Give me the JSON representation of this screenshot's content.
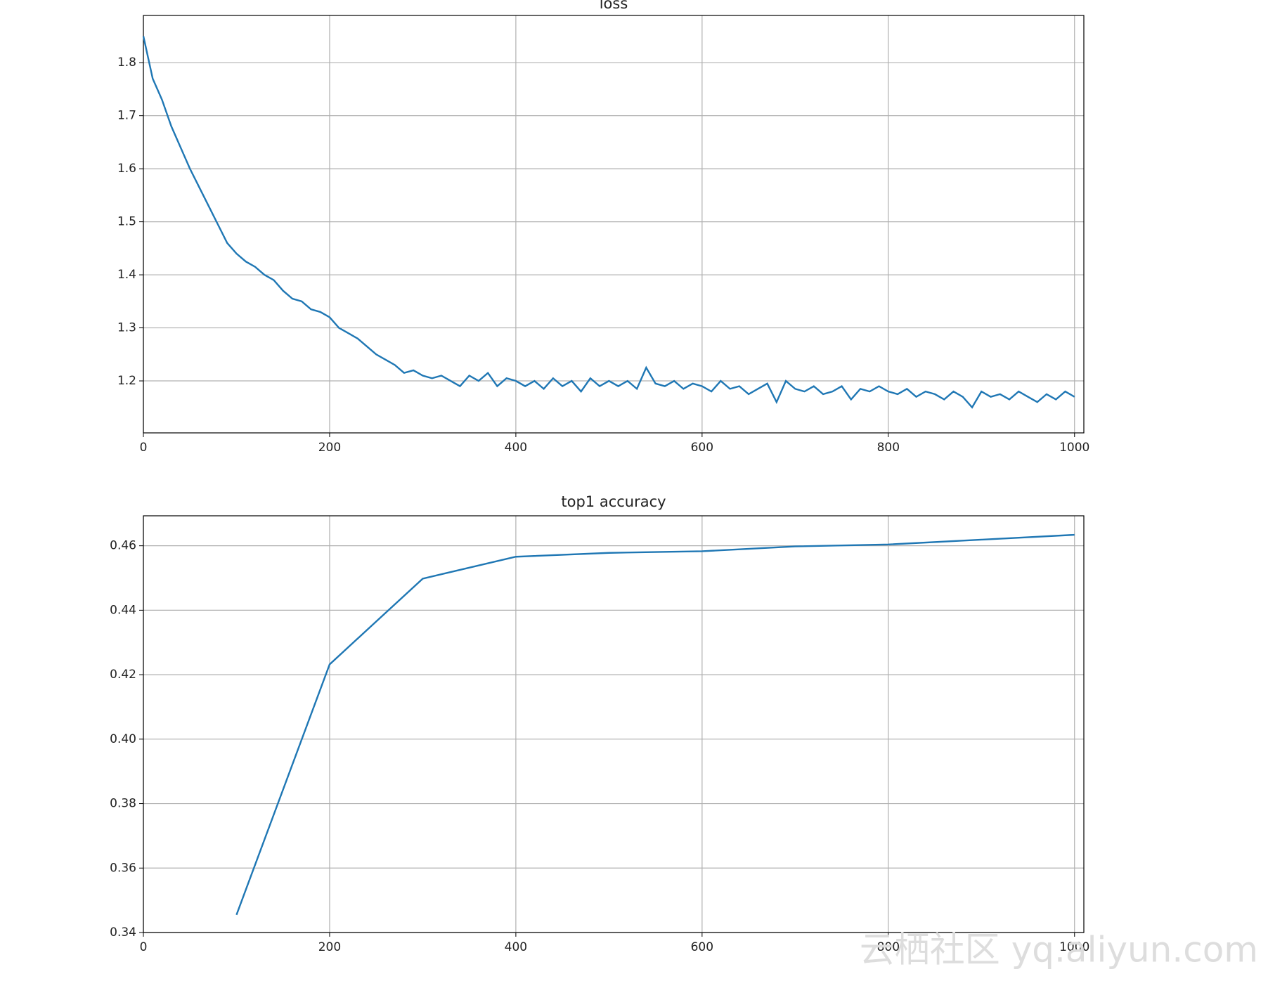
{
  "chart_data": [
    {
      "type": "line",
      "title": "loss",
      "xlim": [
        0,
        1010
      ],
      "xticks": [
        0,
        200,
        400,
        600,
        800,
        1000
      ],
      "ylim": [
        1.102,
        1.889
      ],
      "yticks": [
        1.2,
        1.3,
        1.4,
        1.5,
        1.6,
        1.7,
        1.8
      ],
      "grid": true,
      "series": [
        {
          "name": "loss",
          "color": "#1f77b4",
          "x": [
            0,
            10,
            20,
            30,
            40,
            50,
            60,
            70,
            80,
            90,
            100,
            110,
            120,
            130,
            140,
            150,
            160,
            170,
            180,
            190,
            200,
            210,
            220,
            230,
            240,
            250,
            260,
            270,
            280,
            290,
            300,
            310,
            320,
            330,
            340,
            350,
            360,
            370,
            380,
            390,
            400,
            410,
            420,
            430,
            440,
            450,
            460,
            470,
            480,
            490,
            500,
            510,
            520,
            530,
            540,
            550,
            560,
            570,
            580,
            590,
            600,
            610,
            620,
            630,
            640,
            650,
            660,
            670,
            680,
            690,
            700,
            710,
            720,
            730,
            740,
            750,
            760,
            770,
            780,
            790,
            800,
            810,
            820,
            830,
            840,
            850,
            860,
            870,
            880,
            890,
            900,
            910,
            920,
            930,
            940,
            950,
            960,
            970,
            980,
            990,
            1000
          ],
          "values": [
            1.85,
            1.77,
            1.73,
            1.68,
            1.64,
            1.6,
            1.565,
            1.53,
            1.495,
            1.46,
            1.44,
            1.425,
            1.415,
            1.4,
            1.39,
            1.37,
            1.355,
            1.35,
            1.335,
            1.33,
            1.32,
            1.3,
            1.29,
            1.28,
            1.265,
            1.25,
            1.24,
            1.23,
            1.215,
            1.22,
            1.21,
            1.205,
            1.21,
            1.2,
            1.19,
            1.21,
            1.2,
            1.215,
            1.19,
            1.205,
            1.2,
            1.19,
            1.2,
            1.185,
            1.205,
            1.19,
            1.2,
            1.18,
            1.205,
            1.19,
            1.2,
            1.19,
            1.2,
            1.185,
            1.225,
            1.195,
            1.19,
            1.2,
            1.185,
            1.195,
            1.19,
            1.18,
            1.2,
            1.185,
            1.19,
            1.175,
            1.185,
            1.195,
            1.16,
            1.2,
            1.185,
            1.18,
            1.19,
            1.175,
            1.18,
            1.19,
            1.165,
            1.185,
            1.18,
            1.19,
            1.18,
            1.175,
            1.185,
            1.17,
            1.18,
            1.175,
            1.165,
            1.18,
            1.17,
            1.15,
            1.18,
            1.17,
            1.175,
            1.165,
            1.18,
            1.17,
            1.16,
            1.175,
            1.165,
            1.18,
            1.17
          ]
        }
      ]
    },
    {
      "type": "line",
      "title": "top1 accuracy",
      "xlim": [
        0,
        1010
      ],
      "xticks": [
        0,
        200,
        400,
        600,
        800,
        1000
      ],
      "ylim": [
        0.34,
        0.4693
      ],
      "yticks": [
        0.34,
        0.36,
        0.38,
        {
          "value": 0.4,
          "label": "0.40"
        },
        0.42,
        0.44,
        0.46
      ],
      "grid": true,
      "series": [
        {
          "name": "top1 accuracy",
          "color": "#1f77b4",
          "x": [
            100,
            200,
            300,
            400,
            500,
            600,
            700,
            800,
            900,
            1000
          ],
          "values": [
            0.3455,
            0.4232,
            0.4498,
            0.4566,
            0.4578,
            0.4583,
            0.4598,
            0.4604,
            0.4619,
            0.4634
          ]
        }
      ]
    }
  ],
  "watermark": "云栖社区 yq.aliyun.com"
}
